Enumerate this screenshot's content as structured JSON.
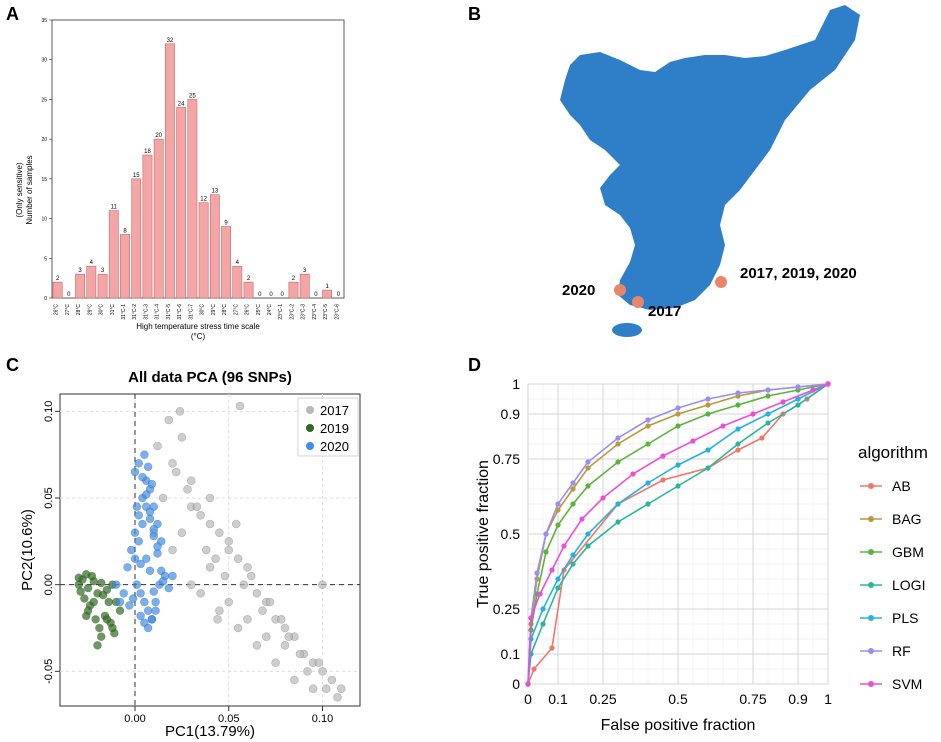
{
  "panelA": {
    "label": "A",
    "chart_data": {
      "type": "bar",
      "ylabel_line1": "(Only sensitive)",
      "ylabel_line2": "Number of samples",
      "xlabel_line1": "High temperature stress time scale",
      "xlabel_line2": "(°C)",
      "ylim": [
        0,
        35
      ],
      "yticks": [
        0,
        5,
        10,
        15,
        20,
        25,
        30,
        35
      ],
      "categories": [
        "26°C",
        "27°C",
        "28°C",
        "29°C",
        "30°C",
        "31°C",
        "31°C-1",
        "31°C-2",
        "31°C-3",
        "31°C-4",
        "31°C-5",
        "31°C-6",
        "31°C-7",
        "30°C",
        "29°C",
        "28°C",
        "27°C",
        "26°C",
        "25°C",
        "24°C",
        "23°C-1",
        "23°C-2",
        "23°C-3",
        "23°C-4",
        "23°C-5",
        "23°C-6"
      ],
      "values": [
        2,
        0,
        3,
        4,
        3,
        11,
        8,
        15,
        18,
        20,
        32,
        24,
        25,
        12,
        13,
        9,
        4,
        2,
        0,
        0,
        0,
        2,
        3,
        0,
        1,
        0
      ],
      "color": "#f4a6a6"
    }
  },
  "panelB": {
    "label": "B",
    "locations": [
      {
        "name": "2020"
      },
      {
        "name": "2017"
      },
      {
        "name": "2017, 2019, 2020"
      }
    ],
    "map_color": "#2f7fc8",
    "marker_color": "#e8866a"
  },
  "panelC": {
    "label": "C",
    "chart_data": {
      "type": "scatter",
      "title": "All data PCA (96 SNPs)",
      "xlabel": "PC1(13.79%)",
      "ylabel": "PC2(10.6%)",
      "xlim": [
        -0.04,
        0.12
      ],
      "ylim": [
        -0.07,
        0.11
      ],
      "xticks": [
        "0.00",
        "0.05",
        "0.10"
      ],
      "xtick_values": [
        0.0,
        0.05,
        0.1
      ],
      "yticks": [
        "-0.05",
        "0.00",
        "0.05",
        "0.10"
      ],
      "ytick_values": [
        -0.05,
        0.0,
        0.05,
        0.1
      ],
      "legend": [
        {
          "name": "2017",
          "color": "#b8b8b8"
        },
        {
          "name": "2019",
          "color": "#2e6b1f"
        },
        {
          "name": "2020",
          "color": "#3f8fe8"
        }
      ],
      "series": [
        {
          "name": "2017",
          "x": [
            0.02,
            0.025,
            0.03,
            0.035,
            0.04,
            0.045,
            0.05,
            0.055,
            0.06,
            0.065,
            0.07,
            0.075,
            0.08,
            0.085,
            0.09,
            0.095,
            0.1,
            0.105,
            0.11,
            0.025,
            0.03,
            0.04,
            0.05,
            0.06,
            0.07,
            0.08,
            0.015,
            0.02,
            0.035,
            0.045,
            0.055,
            0.065,
            0.075,
            0.085,
            0.095,
            0.03,
            0.04,
            0.05,
            0.012,
            0.018,
            0.022,
            0.028,
            0.033,
            0.038,
            0.043,
            0.048,
            0.058,
            0.068,
            0.078,
            0.088,
            0.098,
            0.108,
            0.062,
            0.072,
            0.082,
            0.092,
            0.102,
            0.024,
            0.044,
            0.054,
            0.056,
            0.01,
            0.1
          ],
          "y": [
            0.07,
            0.085,
            0.06,
            0.04,
            0.05,
            0.03,
            0.02,
            0.015,
            0.01,
            -0.005,
            -0.01,
            -0.02,
            -0.025,
            -0.03,
            -0.04,
            -0.045,
            -0.05,
            -0.055,
            -0.06,
            0.03,
            0.0,
            0.01,
            -0.01,
            -0.02,
            -0.03,
            -0.035,
            0.05,
            0.02,
            -0.005,
            -0.015,
            -0.025,
            -0.035,
            -0.045,
            -0.055,
            -0.06,
            0.045,
            0.035,
            0.025,
            0.08,
            0.095,
            0.065,
            0.055,
            0.045,
            0.02,
            0.015,
            0.005,
            0.0,
            -0.015,
            -0.02,
            -0.04,
            -0.045,
            -0.065,
            0.005,
            -0.01,
            -0.03,
            -0.05,
            -0.06,
            0.1,
            -0.02,
            0.035,
            0.103,
            0.03,
            0.0
          ]
        },
        {
          "name": "2019",
          "x": [
            -0.03,
            -0.028,
            -0.025,
            -0.022,
            -0.02,
            -0.018,
            -0.015,
            -0.012,
            -0.01,
            -0.008,
            -0.027,
            -0.024,
            -0.021,
            -0.019,
            -0.016,
            -0.013,
            -0.011,
            -0.026,
            -0.023,
            -0.017,
            -0.014,
            -0.029,
            -0.02,
            -0.025,
            -0.022,
            -0.018,
            -0.015,
            -0.012,
            -0.03,
            -0.026
          ],
          "y": [
            0.0,
            0.003,
            -0.002,
            0.002,
            -0.005,
            0.001,
            -0.003,
            0.0,
            -0.01,
            -0.015,
            -0.008,
            -0.012,
            -0.02,
            -0.025,
            -0.018,
            -0.022,
            -0.028,
            0.006,
            0.005,
            -0.006,
            -0.01,
            -0.004,
            -0.035,
            -0.015,
            -0.01,
            -0.03,
            -0.02,
            -0.025,
            0.004,
            -0.018
          ]
        },
        {
          "name": "2020",
          "x": [
            0.0,
            0.002,
            0.004,
            0.006,
            0.008,
            0.01,
            0.012,
            0.014,
            -0.002,
            -0.004,
            0.001,
            0.003,
            0.005,
            0.007,
            0.009,
            0.011,
            0.013,
            -0.001,
            -0.003,
            0.0,
            0.002,
            0.004,
            0.006,
            0.008,
            0.01,
            0.012,
            0.014,
            0.016,
            0.003,
            0.005,
            0.007,
            0.009,
            0.011,
            -0.006,
            -0.008,
            -0.01,
            0.0,
            0.002,
            0.004,
            0.006,
            0.008,
            0.01,
            0.012,
            0.005,
            0.007,
            0.009,
            0.015,
            0.018,
            0.02,
            0.006,
            0.008,
            0.01,
            0.003,
            0.001
          ],
          "y": [
            0.03,
            0.04,
            0.05,
            0.06,
            0.055,
            0.045,
            0.035,
            0.025,
            0.02,
            0.01,
            0.0,
            -0.005,
            -0.01,
            -0.015,
            -0.02,
            -0.01,
            0.0,
            -0.008,
            -0.012,
            0.015,
            0.025,
            0.035,
            0.045,
            0.038,
            0.028,
            0.018,
            0.008,
            0.005,
            -0.018,
            -0.022,
            -0.025,
            -0.02,
            -0.015,
            -0.005,
            -0.01,
            0.0,
            0.065,
            0.07,
            0.062,
            0.052,
            0.042,
            0.032,
            0.022,
            0.075,
            0.068,
            0.058,
            0.002,
            -0.002,
            0.005,
            0.015,
            0.008,
            -0.004,
            0.012,
            0.045
          ]
        }
      ]
    }
  },
  "panelD": {
    "label": "D",
    "chart_data": {
      "type": "line",
      "xlabel": "False positive fraction",
      "ylabel": "True positive fraction",
      "xlim": [
        0,
        1
      ],
      "ylim": [
        0,
        1
      ],
      "xticks": [
        "0",
        "0.1",
        "0.25",
        "0.5",
        "0.75",
        "0.9",
        "1"
      ],
      "xtick_values": [
        0,
        0.1,
        0.25,
        0.5,
        0.75,
        0.9,
        1
      ],
      "yticks": [
        "0",
        "0.1",
        "0.25",
        "0.5",
        "0.75",
        "0.9",
        "1"
      ],
      "ytick_values": [
        0,
        0.1,
        0.25,
        0.5,
        0.75,
        0.9,
        1
      ],
      "legend_title": "algorithm",
      "series": [
        {
          "name": "AB",
          "color": "#f0766b",
          "x": [
            0,
            0.02,
            0.08,
            0.12,
            0.3,
            0.45,
            0.6,
            0.7,
            0.78,
            0.85,
            0.93,
            1
          ],
          "y": [
            0,
            0.05,
            0.12,
            0.38,
            0.6,
            0.68,
            0.72,
            0.78,
            0.82,
            0.9,
            0.95,
            1
          ]
        },
        {
          "name": "BAG",
          "color": "#b89a3a",
          "x": [
            0,
            0.01,
            0.03,
            0.06,
            0.1,
            0.15,
            0.2,
            0.3,
            0.4,
            0.5,
            0.6,
            0.7,
            0.8,
            0.9,
            1
          ],
          "y": [
            0,
            0.2,
            0.35,
            0.5,
            0.58,
            0.65,
            0.72,
            0.8,
            0.86,
            0.9,
            0.93,
            0.96,
            0.98,
            0.99,
            1
          ]
        },
        {
          "name": "GBM",
          "color": "#5ab53a",
          "x": [
            0,
            0.01,
            0.03,
            0.06,
            0.1,
            0.15,
            0.2,
            0.3,
            0.4,
            0.5,
            0.6,
            0.7,
            0.8,
            0.9,
            1
          ],
          "y": [
            0,
            0.18,
            0.3,
            0.44,
            0.53,
            0.6,
            0.66,
            0.74,
            0.8,
            0.86,
            0.9,
            0.93,
            0.96,
            0.98,
            1
          ]
        },
        {
          "name": "LOGI",
          "color": "#2bb59a",
          "x": [
            0,
            0.01,
            0.05,
            0.1,
            0.15,
            0.2,
            0.3,
            0.4,
            0.5,
            0.6,
            0.7,
            0.8,
            0.9,
            1
          ],
          "y": [
            0,
            0.1,
            0.2,
            0.32,
            0.4,
            0.46,
            0.54,
            0.6,
            0.66,
            0.72,
            0.8,
            0.87,
            0.93,
            1
          ]
        },
        {
          "name": "PLS",
          "color": "#24b3e0",
          "x": [
            0,
            0.01,
            0.05,
            0.1,
            0.15,
            0.2,
            0.3,
            0.4,
            0.5,
            0.6,
            0.7,
            0.8,
            0.9,
            1
          ],
          "y": [
            0,
            0.15,
            0.25,
            0.35,
            0.43,
            0.5,
            0.6,
            0.67,
            0.73,
            0.78,
            0.85,
            0.9,
            0.95,
            1
          ]
        },
        {
          "name": "RF",
          "color": "#9b8ef0",
          "x": [
            0,
            0.01,
            0.03,
            0.06,
            0.1,
            0.15,
            0.2,
            0.3,
            0.4,
            0.5,
            0.6,
            0.7,
            0.8,
            0.9,
            1
          ],
          "y": [
            0,
            0.22,
            0.37,
            0.5,
            0.6,
            0.67,
            0.74,
            0.82,
            0.88,
            0.92,
            0.95,
            0.97,
            0.98,
            0.99,
            1
          ]
        },
        {
          "name": "SVM",
          "color": "#ea4fd8",
          "x": [
            0,
            0.01,
            0.04,
            0.08,
            0.12,
            0.18,
            0.25,
            0.35,
            0.45,
            0.55,
            0.65,
            0.75,
            0.85,
            0.95,
            1
          ],
          "y": [
            0,
            0.22,
            0.3,
            0.38,
            0.46,
            0.55,
            0.62,
            0.7,
            0.76,
            0.81,
            0.86,
            0.9,
            0.94,
            0.98,
            1
          ]
        }
      ]
    }
  }
}
